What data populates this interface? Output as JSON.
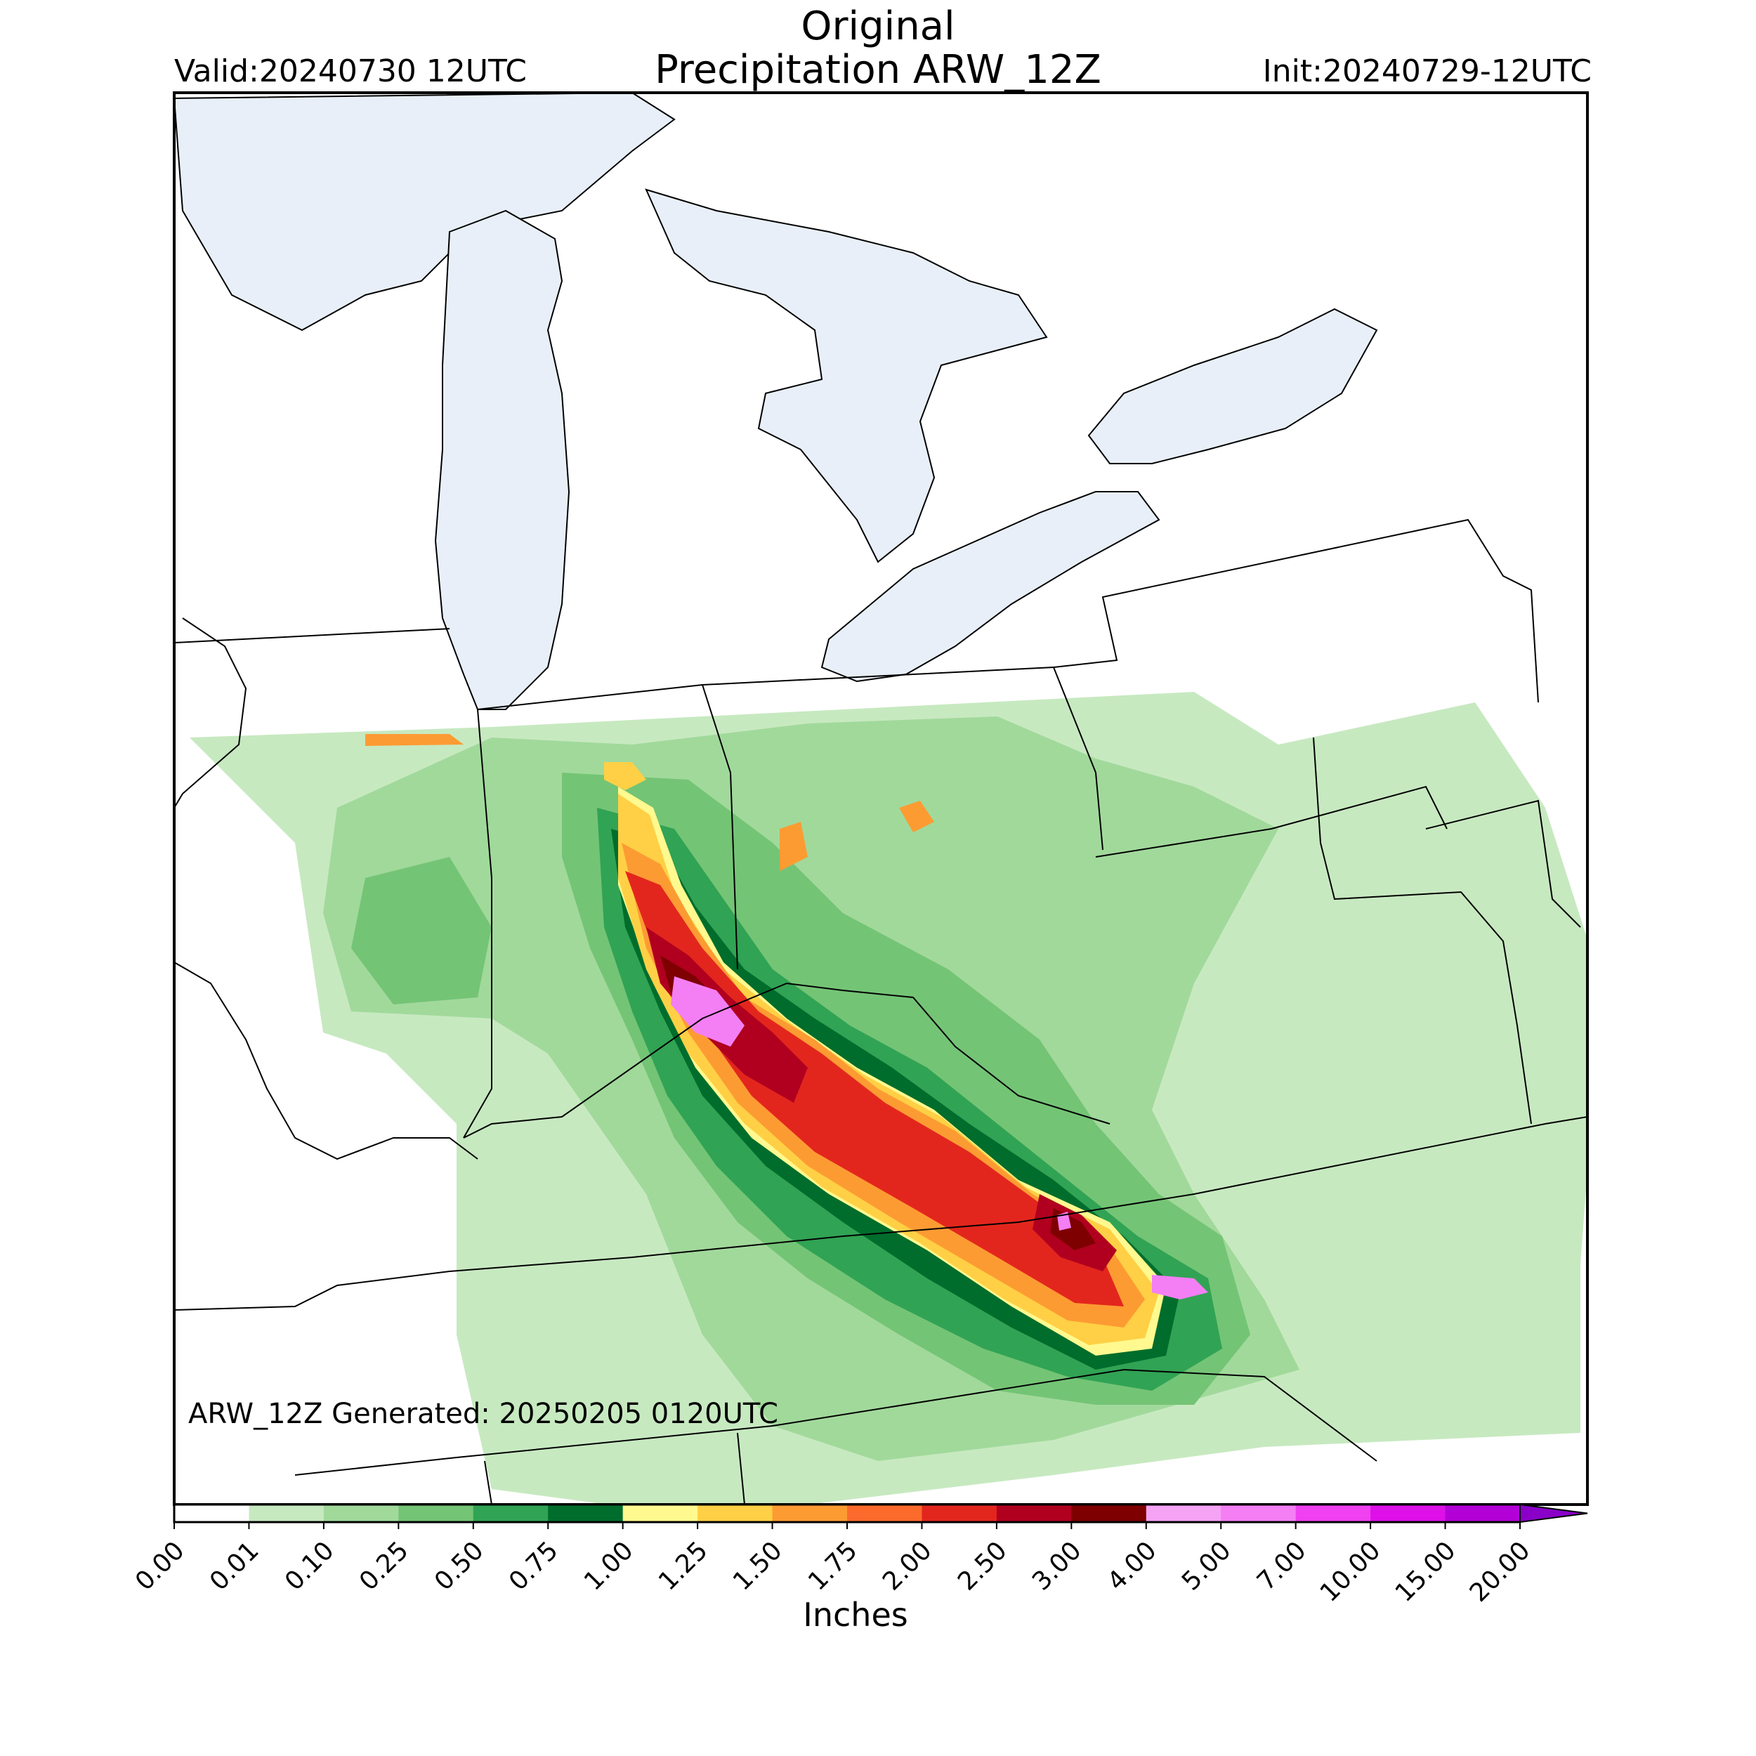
{
  "header": {
    "title_line1": "Original",
    "title_line2": "Precipitation ARW_12Z",
    "valid": "Valid:20240730 12UTC",
    "init": "Init:20240729-12UTC"
  },
  "footer": {
    "generated": "ARW_12Z Generated: 20250205 0120UTC"
  },
  "colorbar": {
    "units": "Inches",
    "labels": [
      "0.00",
      "0.01",
      "0.10",
      "0.25",
      "0.50",
      "0.75",
      "1.00",
      "1.25",
      "1.50",
      "1.75",
      "2.00",
      "2.50",
      "3.00",
      "4.00",
      "5.00",
      "7.00",
      "10.00",
      "15.00",
      "20.00"
    ],
    "colors": [
      "#ffffff",
      "#c7e9c0",
      "#a1d99b",
      "#74c476",
      "#31a354",
      "#006d2c",
      "#fff98f",
      "#ffd045",
      "#fd9b33",
      "#fc6a2c",
      "#e3261d",
      "#b1001f",
      "#7f0000",
      "#f5a3f5",
      "#f47ff4",
      "#f040f0",
      "#dd10e8",
      "#b300d6",
      "#8a00c8"
    ]
  },
  "map": {
    "water_color": "#e8eff8",
    "land_color": "#ffffff",
    "border_color": "#000000"
  }
}
